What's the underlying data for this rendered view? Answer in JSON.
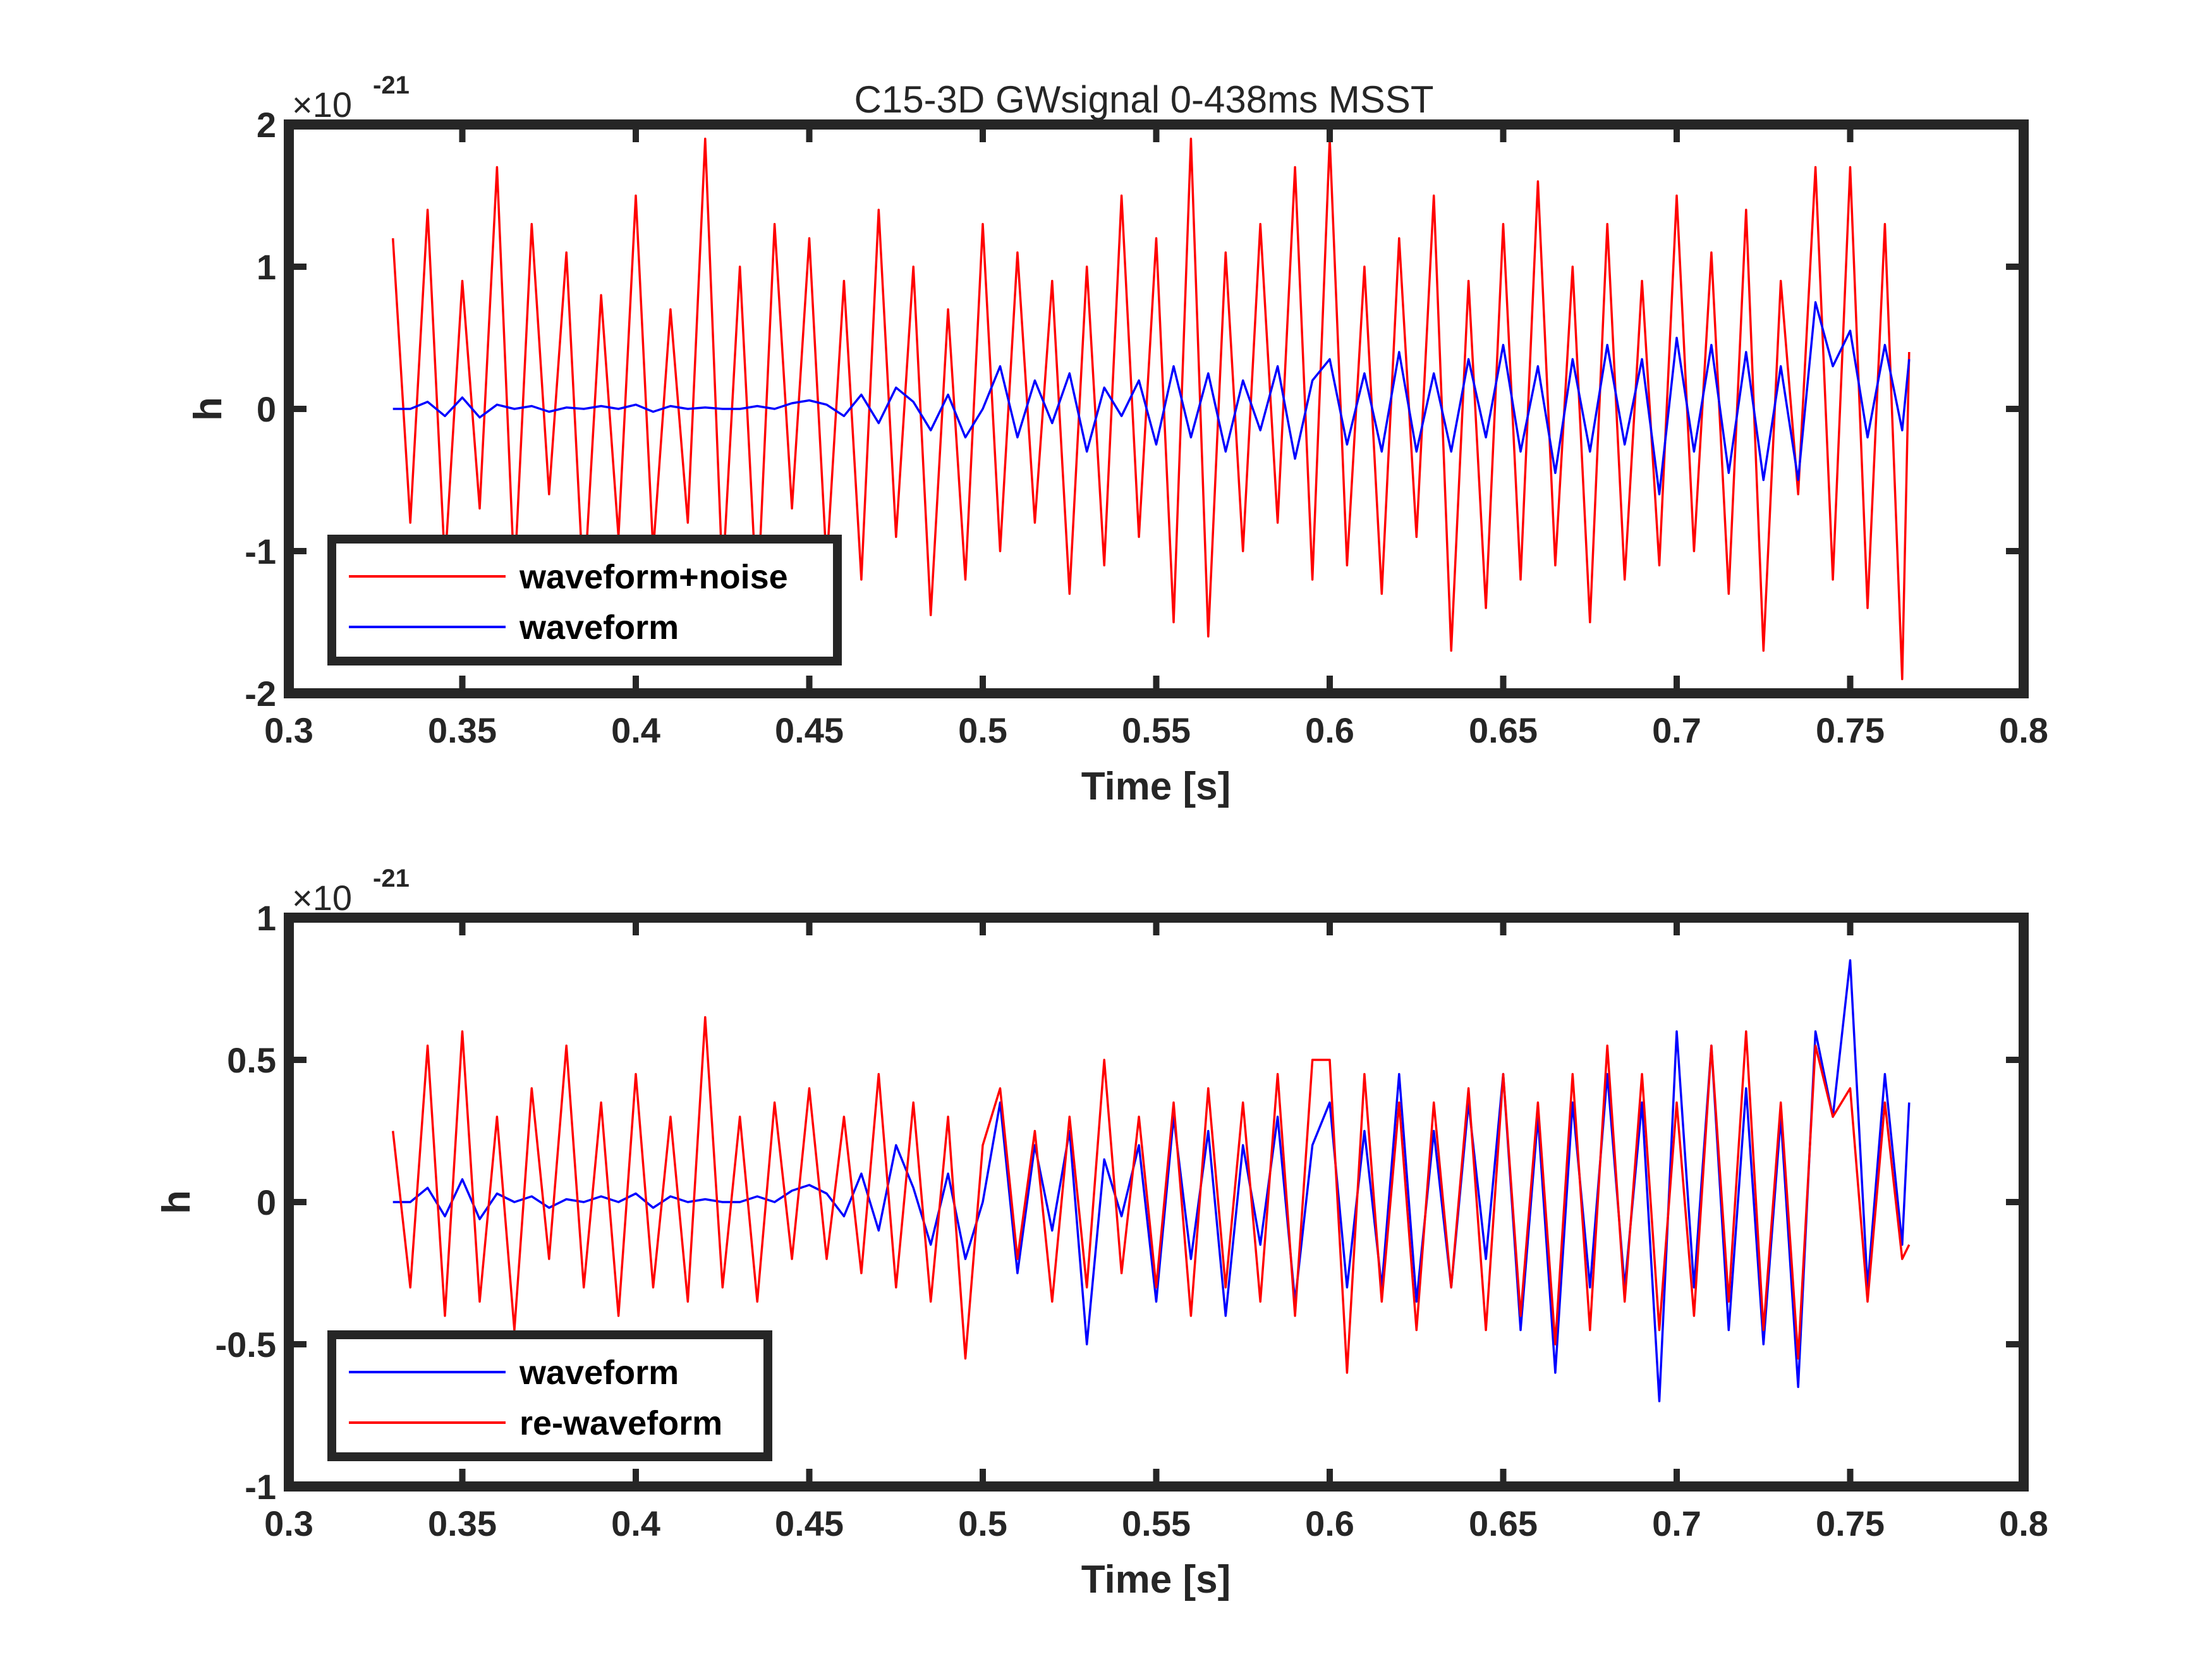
{
  "chart_data": [
    {
      "type": "line",
      "title": "C15-3D GWsignal 0-438ms MSST",
      "xlabel": "Time [s]",
      "ylabel": "h",
      "exponent_base": "×10",
      "exponent_power": "-21",
      "xlim": [
        0.3,
        0.8
      ],
      "ylim": [
        -2,
        2
      ],
      "xticks": [
        0.3,
        0.35,
        0.4,
        0.45,
        0.5,
        0.55,
        0.6,
        0.65,
        0.7,
        0.75,
        0.8
      ],
      "xtick_labels": [
        "0.3",
        "0.35",
        "0.4",
        "0.45",
        "0.5",
        "0.55",
        "0.6",
        "0.65",
        "0.7",
        "0.75",
        "0.8"
      ],
      "yticks": [
        -2,
        -1,
        0,
        1,
        2
      ],
      "ytick_labels": [
        "-2",
        "-1",
        "0",
        "1",
        "2"
      ],
      "legend_position": "bottom-left",
      "series": [
        {
          "name": "waveform+noise",
          "color": "#ff0000",
          "x": [
            0.33,
            0.335,
            0.34,
            0.345,
            0.35,
            0.355,
            0.36,
            0.365,
            0.37,
            0.375,
            0.38,
            0.385,
            0.39,
            0.395,
            0.4,
            0.405,
            0.41,
            0.415,
            0.42,
            0.425,
            0.43,
            0.435,
            0.44,
            0.445,
            0.45,
            0.455,
            0.46,
            0.465,
            0.47,
            0.475,
            0.48,
            0.485,
            0.49,
            0.495,
            0.5,
            0.505,
            0.51,
            0.515,
            0.52,
            0.525,
            0.53,
            0.535,
            0.54,
            0.545,
            0.55,
            0.555,
            0.56,
            0.565,
            0.57,
            0.575,
            0.58,
            0.585,
            0.59,
            0.595,
            0.6,
            0.605,
            0.61,
            0.615,
            0.62,
            0.625,
            0.63,
            0.635,
            0.64,
            0.645,
            0.65,
            0.655,
            0.66,
            0.665,
            0.67,
            0.675,
            0.68,
            0.685,
            0.69,
            0.695,
            0.7,
            0.705,
            0.71,
            0.715,
            0.72,
            0.725,
            0.73,
            0.735,
            0.74,
            0.745,
            0.75,
            0.755,
            0.76,
            0.765,
            0.767
          ],
          "values": [
            1.2,
            -0.8,
            1.4,
            -1.1,
            0.9,
            -0.7,
            1.7,
            -1.2,
            1.3,
            -0.6,
            1.1,
            -1.3,
            0.8,
            -0.9,
            1.5,
            -1.0,
            0.7,
            -0.8,
            1.9,
            -1.2,
            1.0,
            -1.4,
            1.3,
            -0.7,
            1.2,
            -1.1,
            0.9,
            -1.2,
            1.4,
            -0.9,
            1.0,
            -1.45,
            0.7,
            -1.2,
            1.3,
            -1.0,
            1.1,
            -0.8,
            0.9,
            -1.3,
            1.0,
            -1.1,
            1.5,
            -0.9,
            1.2,
            -1.5,
            1.9,
            -1.6,
            1.1,
            -1.0,
            1.3,
            -0.8,
            1.7,
            -1.2,
            1.9,
            -1.1,
            1.0,
            -1.3,
            1.2,
            -0.9,
            1.5,
            -1.7,
            0.9,
            -1.4,
            1.3,
            -1.2,
            1.6,
            -1.1,
            1.0,
            -1.5,
            1.3,
            -1.2,
            0.9,
            -1.1,
            1.5,
            -1.0,
            1.1,
            -1.3,
            1.4,
            -1.7,
            0.9,
            -0.6,
            1.7,
            -1.2,
            1.7,
            -1.4,
            1.3,
            -1.9,
            0.4
          ]
        },
        {
          "name": "waveform",
          "color": "#0000ff",
          "x": [
            0.33,
            0.335,
            0.34,
            0.345,
            0.35,
            0.355,
            0.36,
            0.365,
            0.37,
            0.375,
            0.38,
            0.385,
            0.39,
            0.395,
            0.4,
            0.405,
            0.41,
            0.415,
            0.42,
            0.425,
            0.43,
            0.435,
            0.44,
            0.445,
            0.45,
            0.455,
            0.46,
            0.465,
            0.47,
            0.475,
            0.48,
            0.485,
            0.49,
            0.495,
            0.5,
            0.505,
            0.51,
            0.515,
            0.52,
            0.525,
            0.53,
            0.535,
            0.54,
            0.545,
            0.55,
            0.555,
            0.56,
            0.565,
            0.57,
            0.575,
            0.58,
            0.585,
            0.59,
            0.595,
            0.6,
            0.605,
            0.61,
            0.615,
            0.62,
            0.625,
            0.63,
            0.635,
            0.64,
            0.645,
            0.65,
            0.655,
            0.66,
            0.665,
            0.67,
            0.675,
            0.68,
            0.685,
            0.69,
            0.695,
            0.7,
            0.705,
            0.71,
            0.715,
            0.72,
            0.725,
            0.73,
            0.735,
            0.74,
            0.745,
            0.75,
            0.755,
            0.76,
            0.765,
            0.767
          ],
          "values": [
            0.0,
            0.0,
            0.05,
            -0.05,
            0.08,
            -0.06,
            0.03,
            0.0,
            0.02,
            -0.02,
            0.01,
            0.0,
            0.02,
            0.0,
            0.03,
            -0.02,
            0.02,
            0.0,
            0.01,
            0.0,
            0.0,
            0.02,
            0.0,
            0.04,
            0.06,
            0.03,
            -0.05,
            0.1,
            -0.1,
            0.15,
            0.05,
            -0.15,
            0.1,
            -0.2,
            0.0,
            0.3,
            -0.2,
            0.2,
            -0.1,
            0.25,
            -0.3,
            0.15,
            -0.05,
            0.2,
            -0.25,
            0.3,
            -0.2,
            0.25,
            -0.3,
            0.2,
            -0.15,
            0.3,
            -0.35,
            0.2,
            0.35,
            -0.25,
            0.25,
            -0.3,
            0.4,
            -0.3,
            0.25,
            -0.3,
            0.35,
            -0.2,
            0.45,
            -0.3,
            0.3,
            -0.45,
            0.35,
            -0.3,
            0.45,
            -0.25,
            0.35,
            -0.6,
            0.5,
            -0.3,
            0.45,
            -0.45,
            0.4,
            -0.5,
            0.3,
            -0.5,
            0.75,
            0.3,
            0.55,
            -0.2,
            0.45,
            -0.15,
            0.35
          ]
        }
      ]
    },
    {
      "type": "line",
      "title": "",
      "xlabel": "Time [s]",
      "ylabel": "h",
      "exponent_base": "×10",
      "exponent_power": "-21",
      "xlim": [
        0.3,
        0.8
      ],
      "ylim": [
        -1,
        1
      ],
      "xticks": [
        0.3,
        0.35,
        0.4,
        0.45,
        0.5,
        0.55,
        0.6,
        0.65,
        0.7,
        0.75,
        0.8
      ],
      "xtick_labels": [
        "0.3",
        "0.35",
        "0.4",
        "0.45",
        "0.5",
        "0.55",
        "0.6",
        "0.65",
        "0.7",
        "0.75",
        "0.8"
      ],
      "yticks": [
        -1,
        -0.5,
        0,
        0.5,
        1
      ],
      "ytick_labels": [
        "-1",
        "-0.5",
        "0",
        "0.5",
        "1"
      ],
      "legend_position": "bottom-left",
      "series": [
        {
          "name": "waveform",
          "color": "#0000ff",
          "x": [
            0.33,
            0.335,
            0.34,
            0.345,
            0.35,
            0.355,
            0.36,
            0.365,
            0.37,
            0.375,
            0.38,
            0.385,
            0.39,
            0.395,
            0.4,
            0.405,
            0.41,
            0.415,
            0.42,
            0.425,
            0.43,
            0.435,
            0.44,
            0.445,
            0.45,
            0.455,
            0.46,
            0.465,
            0.47,
            0.475,
            0.48,
            0.485,
            0.49,
            0.495,
            0.5,
            0.505,
            0.51,
            0.515,
            0.52,
            0.525,
            0.53,
            0.535,
            0.54,
            0.545,
            0.55,
            0.555,
            0.56,
            0.565,
            0.57,
            0.575,
            0.58,
            0.585,
            0.59,
            0.595,
            0.6,
            0.605,
            0.61,
            0.615,
            0.62,
            0.625,
            0.63,
            0.635,
            0.64,
            0.645,
            0.65,
            0.655,
            0.66,
            0.665,
            0.67,
            0.675,
            0.68,
            0.685,
            0.69,
            0.695,
            0.7,
            0.705,
            0.71,
            0.715,
            0.72,
            0.725,
            0.73,
            0.735,
            0.74,
            0.745,
            0.75,
            0.755,
            0.76,
            0.765,
            0.767
          ],
          "values": [
            0.0,
            0.0,
            0.05,
            -0.05,
            0.08,
            -0.06,
            0.03,
            0.0,
            0.02,
            -0.02,
            0.01,
            0.0,
            0.02,
            0.0,
            0.03,
            -0.02,
            0.02,
            0.0,
            0.01,
            0.0,
            0.0,
            0.02,
            0.0,
            0.04,
            0.06,
            0.03,
            -0.05,
            0.1,
            -0.1,
            0.2,
            0.05,
            -0.15,
            0.1,
            -0.2,
            0.0,
            0.35,
            -0.25,
            0.2,
            -0.1,
            0.25,
            -0.5,
            0.15,
            -0.05,
            0.2,
            -0.35,
            0.3,
            -0.2,
            0.25,
            -0.4,
            0.2,
            -0.15,
            0.3,
            -0.35,
            0.2,
            0.35,
            -0.3,
            0.25,
            -0.3,
            0.45,
            -0.35,
            0.25,
            -0.3,
            0.35,
            -0.2,
            0.45,
            -0.45,
            0.3,
            -0.6,
            0.35,
            -0.3,
            0.45,
            -0.3,
            0.35,
            -0.7,
            0.6,
            -0.3,
            0.55,
            -0.45,
            0.4,
            -0.5,
            0.3,
            -0.65,
            0.6,
            0.3,
            0.85,
            -0.3,
            0.45,
            -0.15,
            0.35
          ]
        },
        {
          "name": "re-waveform",
          "color": "#ff0000",
          "x": [
            0.33,
            0.335,
            0.34,
            0.345,
            0.35,
            0.355,
            0.36,
            0.365,
            0.37,
            0.375,
            0.38,
            0.385,
            0.39,
            0.395,
            0.4,
            0.405,
            0.41,
            0.415,
            0.42,
            0.425,
            0.43,
            0.435,
            0.44,
            0.445,
            0.45,
            0.455,
            0.46,
            0.465,
            0.47,
            0.475,
            0.48,
            0.485,
            0.49,
            0.495,
            0.5,
            0.505,
            0.51,
            0.515,
            0.52,
            0.525,
            0.53,
            0.535,
            0.54,
            0.545,
            0.55,
            0.555,
            0.56,
            0.565,
            0.57,
            0.575,
            0.58,
            0.585,
            0.59,
            0.595,
            0.6,
            0.605,
            0.61,
            0.615,
            0.62,
            0.625,
            0.63,
            0.635,
            0.64,
            0.645,
            0.65,
            0.655,
            0.66,
            0.665,
            0.67,
            0.675,
            0.68,
            0.685,
            0.69,
            0.695,
            0.7,
            0.705,
            0.71,
            0.715,
            0.72,
            0.725,
            0.73,
            0.735,
            0.74,
            0.745,
            0.75,
            0.755,
            0.76,
            0.765,
            0.767
          ],
          "values": [
            0.25,
            -0.3,
            0.55,
            -0.4,
            0.6,
            -0.35,
            0.3,
            -0.45,
            0.4,
            -0.2,
            0.55,
            -0.3,
            0.35,
            -0.4,
            0.45,
            -0.3,
            0.3,
            -0.35,
            0.65,
            -0.3,
            0.3,
            -0.35,
            0.35,
            -0.2,
            0.4,
            -0.2,
            0.3,
            -0.25,
            0.45,
            -0.3,
            0.35,
            -0.35,
            0.3,
            -0.55,
            0.2,
            0.4,
            -0.2,
            0.25,
            -0.35,
            0.3,
            -0.3,
            0.5,
            -0.25,
            0.3,
            -0.3,
            0.35,
            -0.4,
            0.4,
            -0.3,
            0.35,
            -0.35,
            0.45,
            -0.4,
            0.5,
            0.5,
            -0.6,
            0.45,
            -0.35,
            0.35,
            -0.45,
            0.35,
            -0.3,
            0.4,
            -0.45,
            0.45,
            -0.4,
            0.35,
            -0.5,
            0.45,
            -0.45,
            0.55,
            -0.35,
            0.45,
            -0.45,
            0.35,
            -0.4,
            0.55,
            -0.35,
            0.6,
            -0.45,
            0.35,
            -0.55,
            0.55,
            0.3,
            0.4,
            -0.35,
            0.35,
            -0.2,
            -0.15
          ]
        }
      ]
    }
  ]
}
